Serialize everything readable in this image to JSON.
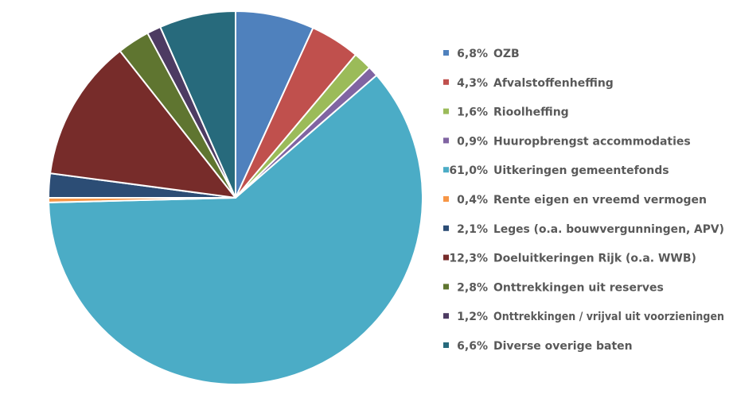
{
  "chart_data": {
    "type": "pie",
    "title": "",
    "legend_position": "right",
    "slices": [
      {
        "label": "OZB",
        "value": 6.8,
        "value_label": "6,8%",
        "color": "#4F81BD"
      },
      {
        "label": "Afvalstoffenheffing",
        "value": 4.3,
        "value_label": "4,3%",
        "color": "#C0504D"
      },
      {
        "label": "Rioolheffing",
        "value": 1.6,
        "value_label": "1,6%",
        "color": "#9BBB59"
      },
      {
        "label": "Huuropbrengst accommodaties",
        "value": 0.9,
        "value_label": "0,9%",
        "color": "#8064A2"
      },
      {
        "label": "Uitkeringen gemeentefonds",
        "value": 61.0,
        "value_label": "61,0%",
        "color": "#4BACC6"
      },
      {
        "label": "Rente eigen en vreemd vermogen",
        "value": 0.4,
        "value_label": "0,4%",
        "color": "#F79646"
      },
      {
        "label": "Leges (o.a. bouwvergunningen, APV)",
        "value": 2.1,
        "value_label": "2,1%",
        "color": "#2C4D75"
      },
      {
        "label": "Doeluitkeringen Rijk (o.a. WWB)",
        "value": 12.3,
        "value_label": "12,3%",
        "color": "#772C2A"
      },
      {
        "label": "Onttrekkingen uit reserves",
        "value": 2.8,
        "value_label": "2,8%",
        "color": "#5F7530"
      },
      {
        "label": "Onttrekkingen / vrijval uit voorzieningen",
        "value": 1.2,
        "value_label": "1,2%",
        "color": "#4D3B62"
      },
      {
        "label": "Diverse overige baten",
        "value": 6.6,
        "value_label": "6,6%",
        "color": "#276A7C"
      }
    ]
  }
}
